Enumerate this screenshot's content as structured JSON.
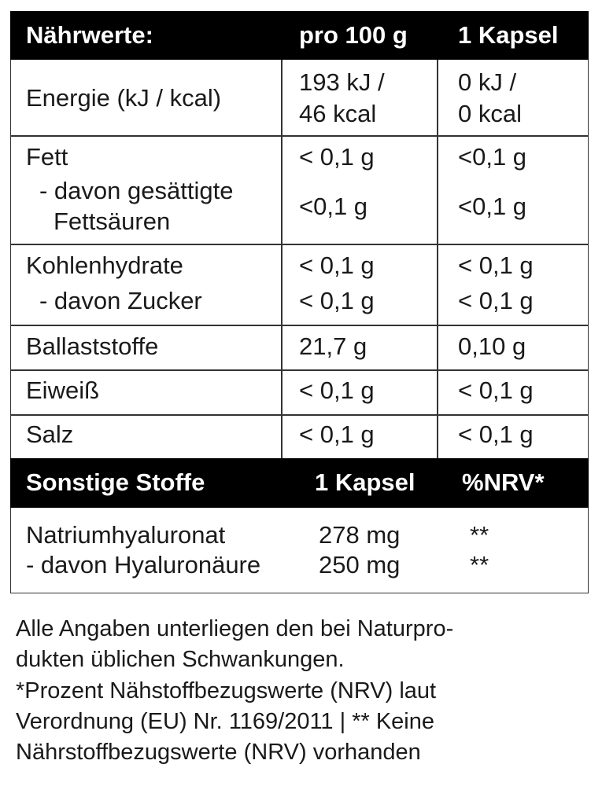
{
  "table": {
    "header": [
      "Nährwerte:",
      "pro 100 g",
      "1 Kapsel"
    ],
    "rows": [
      {
        "name": [
          "Energie (kJ / kcal)"
        ],
        "per_100g": [
          "193 kJ /",
          "46 kcal"
        ],
        "per_capsule": [
          "0 kJ /",
          "0 kcal"
        ]
      },
      {
        "name": [
          "Fett"
        ],
        "per_100g": [
          "< 0,1 g"
        ],
        "per_capsule": [
          "<0,1 g"
        ]
      },
      {
        "name": [
          "- davon gesättigte",
          "Fettsäuren"
        ],
        "per_100g": [
          "<0,1 g"
        ],
        "per_capsule": [
          "<0,1 g"
        ]
      },
      {
        "name": [
          "Kohlenhydrate"
        ],
        "per_100g": [
          "< 0,1 g"
        ],
        "per_capsule": [
          "< 0,1 g"
        ]
      },
      {
        "name": [
          "- davon Zucker"
        ],
        "per_100g": [
          "< 0,1 g"
        ],
        "per_capsule": [
          "< 0,1 g"
        ]
      },
      {
        "name": [
          "Ballaststoffe"
        ],
        "per_100g": [
          "21,7 g"
        ],
        "per_capsule": [
          "0,10 g"
        ]
      },
      {
        "name": [
          "Eiweiß"
        ],
        "per_100g": [
          "< 0,1 g"
        ],
        "per_capsule": [
          "< 0,1 g"
        ]
      },
      {
        "name": [
          "Salz"
        ],
        "per_100g": [
          "< 0,1 g"
        ],
        "per_capsule": [
          "< 0,1 g"
        ]
      }
    ]
  },
  "other_table": {
    "header": [
      "Sonstige Stoffe",
      "1 Kapsel",
      "%NRV*"
    ],
    "rows": [
      [
        "Natriumhyaluronat",
        "278 mg",
        "**"
      ],
      [
        "- davon Hyaluronäure",
        "250 mg",
        "**"
      ]
    ]
  },
  "footnote": [
    "Alle Angaben unterliegen den bei Naturpro-",
    "dukten üblichen Schwankungen.",
    "*Prozent Nähstoffbezugswerte (NRV) laut",
    "Verordnung (EU) Nr. 1169/2011 | ** Keine",
    "Nährstoffbezugswerte (NRV) vorhanden"
  ]
}
